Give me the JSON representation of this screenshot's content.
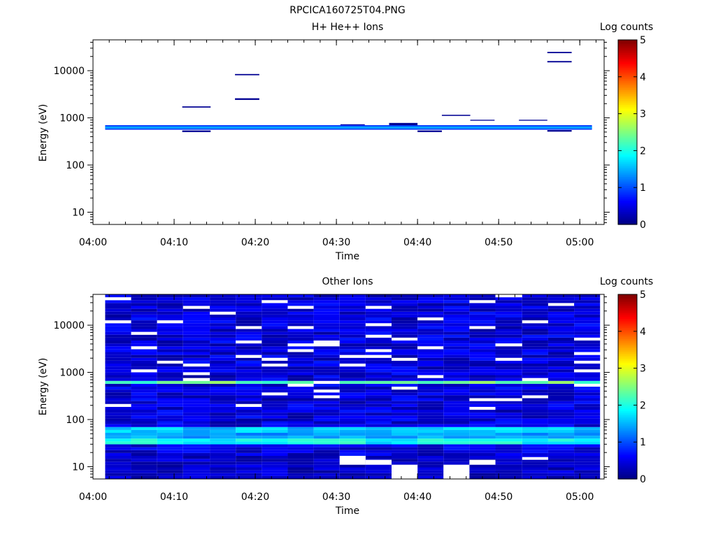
{
  "figure_title": "RPCICA160725T04.PNG",
  "colormap": [
    "#00007f",
    "#0000ff",
    "#007fff",
    "#00ffff",
    "#7fff7f",
    "#ffff00",
    "#ff7f00",
    "#ff0000",
    "#7f0000"
  ],
  "chart_data": [
    {
      "type": "heatmap",
      "title": "H+ He++ Ions",
      "xlabel": "Time",
      "ylabel": "Energy (eV)",
      "x_ticks": [
        "04:00",
        "04:10",
        "04:20",
        "04:30",
        "04:40",
        "04:50",
        "05:00"
      ],
      "y_ticks": [
        "10",
        "100",
        "1000",
        "10000"
      ],
      "x_range_minutes": [
        0,
        63
      ],
      "y_range_eV": [
        5.5,
        45000
      ],
      "y_scale": "log",
      "colorbar": {
        "label": "Log counts",
        "range": [
          0,
          5
        ],
        "ticks": [
          "0",
          "1",
          "2",
          "3",
          "4",
          "5"
        ]
      },
      "background": "white",
      "time_bins": [
        "04:01",
        "04:05",
        "04:08",
        "04:11",
        "04:14",
        "04:18",
        "04:21",
        "04:24",
        "04:27",
        "04:31",
        "04:34",
        "04:37",
        "04:40",
        "04:44",
        "04:47",
        "04:50",
        "04:53",
        "04:57",
        "05:00"
      ],
      "cells": [
        {
          "t": [
            1.5,
            61.5
          ],
          "e": [
            560,
            700
          ],
          "v": 0.9
        },
        {
          "t": [
            1.5,
            61.5
          ],
          "e": [
            590,
            660
          ],
          "v": 1.4
        },
        {
          "t": [
            11,
            14.5
          ],
          "e": [
            1650,
            1750
          ],
          "v": 0.1
        },
        {
          "t": [
            11,
            14.5
          ],
          "e": [
            500,
            540
          ],
          "v": 0.1
        },
        {
          "t": [
            17.5,
            20.5
          ],
          "e": [
            8000,
            8500
          ],
          "v": 0.1
        },
        {
          "t": [
            17.5,
            20.5
          ],
          "e": [
            2400,
            2600
          ],
          "v": 0.1
        },
        {
          "t": [
            30.5,
            33.5
          ],
          "e": [
            700,
            730
          ],
          "v": 0.2
        },
        {
          "t": [
            36.5,
            40
          ],
          "e": [
            700,
            780
          ],
          "v": 0.1
        },
        {
          "t": [
            40,
            43
          ],
          "e": [
            500,
            540
          ],
          "v": 0.1
        },
        {
          "t": [
            43,
            46.5
          ],
          "e": [
            1100,
            1160
          ],
          "v": 0.1
        },
        {
          "t": [
            46.5,
            49.5
          ],
          "e": [
            870,
            910
          ],
          "v": 0.1
        },
        {
          "t": [
            52.5,
            56
          ],
          "e": [
            870,
            910
          ],
          "v": 0.1
        },
        {
          "t": [
            56,
            59
          ],
          "e": [
            23500,
            25000
          ],
          "v": 0.1
        },
        {
          "t": [
            56,
            59
          ],
          "e": [
            15000,
            16000
          ],
          "v": 0.1
        },
        {
          "t": [
            56,
            59
          ],
          "e": [
            510,
            550
          ],
          "v": 0.1
        }
      ]
    },
    {
      "type": "heatmap",
      "title": "Other Ions",
      "xlabel": "Time",
      "ylabel": "Energy (eV)",
      "x_ticks": [
        "04:00",
        "04:10",
        "04:20",
        "04:30",
        "04:40",
        "04:50",
        "05:00"
      ],
      "y_ticks": [
        "10",
        "100",
        "1000",
        "10000"
      ],
      "x_range_minutes": [
        0,
        63
      ],
      "y_range_eV": [
        5.5,
        45000
      ],
      "y_scale": "log",
      "colorbar": {
        "label": "Log counts",
        "range": [
          0,
          5
        ],
        "ticks": [
          "0",
          "1",
          "2",
          "3",
          "4",
          "5"
        ]
      },
      "time_edges_minutes": [
        1.5,
        4.7,
        7.9,
        11.1,
        14.4,
        17.6,
        20.8,
        24.0,
        27.2,
        30.4,
        33.6,
        36.8,
        40.0,
        43.2,
        46.4,
        49.6,
        52.9,
        56.1,
        59.3,
        62.5
      ],
      "energy_edges_eV": [
        5.5,
        45000
      ],
      "energy_bins": 64,
      "noise_seed": 7,
      "bands": [
        {
          "e": [
            540,
            700
          ],
          "v": 2.0
        },
        {
          "e": [
            600,
            660
          ],
          "v": 2.3
        },
        {
          "e": [
            28,
            42
          ],
          "v": 1.9
        },
        {
          "e": [
            42,
            50
          ],
          "v": 1.4
        },
        {
          "e": [
            55,
            68
          ],
          "v": 1.6
        }
      ],
      "low_energy": {
        "e": [
          5.5,
          18
        ],
        "v": 0.45
      },
      "white_cells": [
        {
          "t_bin": 9,
          "e": [
            11,
            17
          ]
        },
        {
          "t_bin": 10,
          "e": [
            11,
            14
          ]
        },
        {
          "t_bin": 11,
          "e": [
            5.5,
            11
          ]
        },
        {
          "t_bin": 13,
          "e": [
            5.5,
            11
          ]
        },
        {
          "t_bin": 14,
          "e": [
            11,
            14
          ]
        },
        {
          "t_bin": 16,
          "e": [
            14,
            16
          ]
        }
      ]
    }
  ]
}
